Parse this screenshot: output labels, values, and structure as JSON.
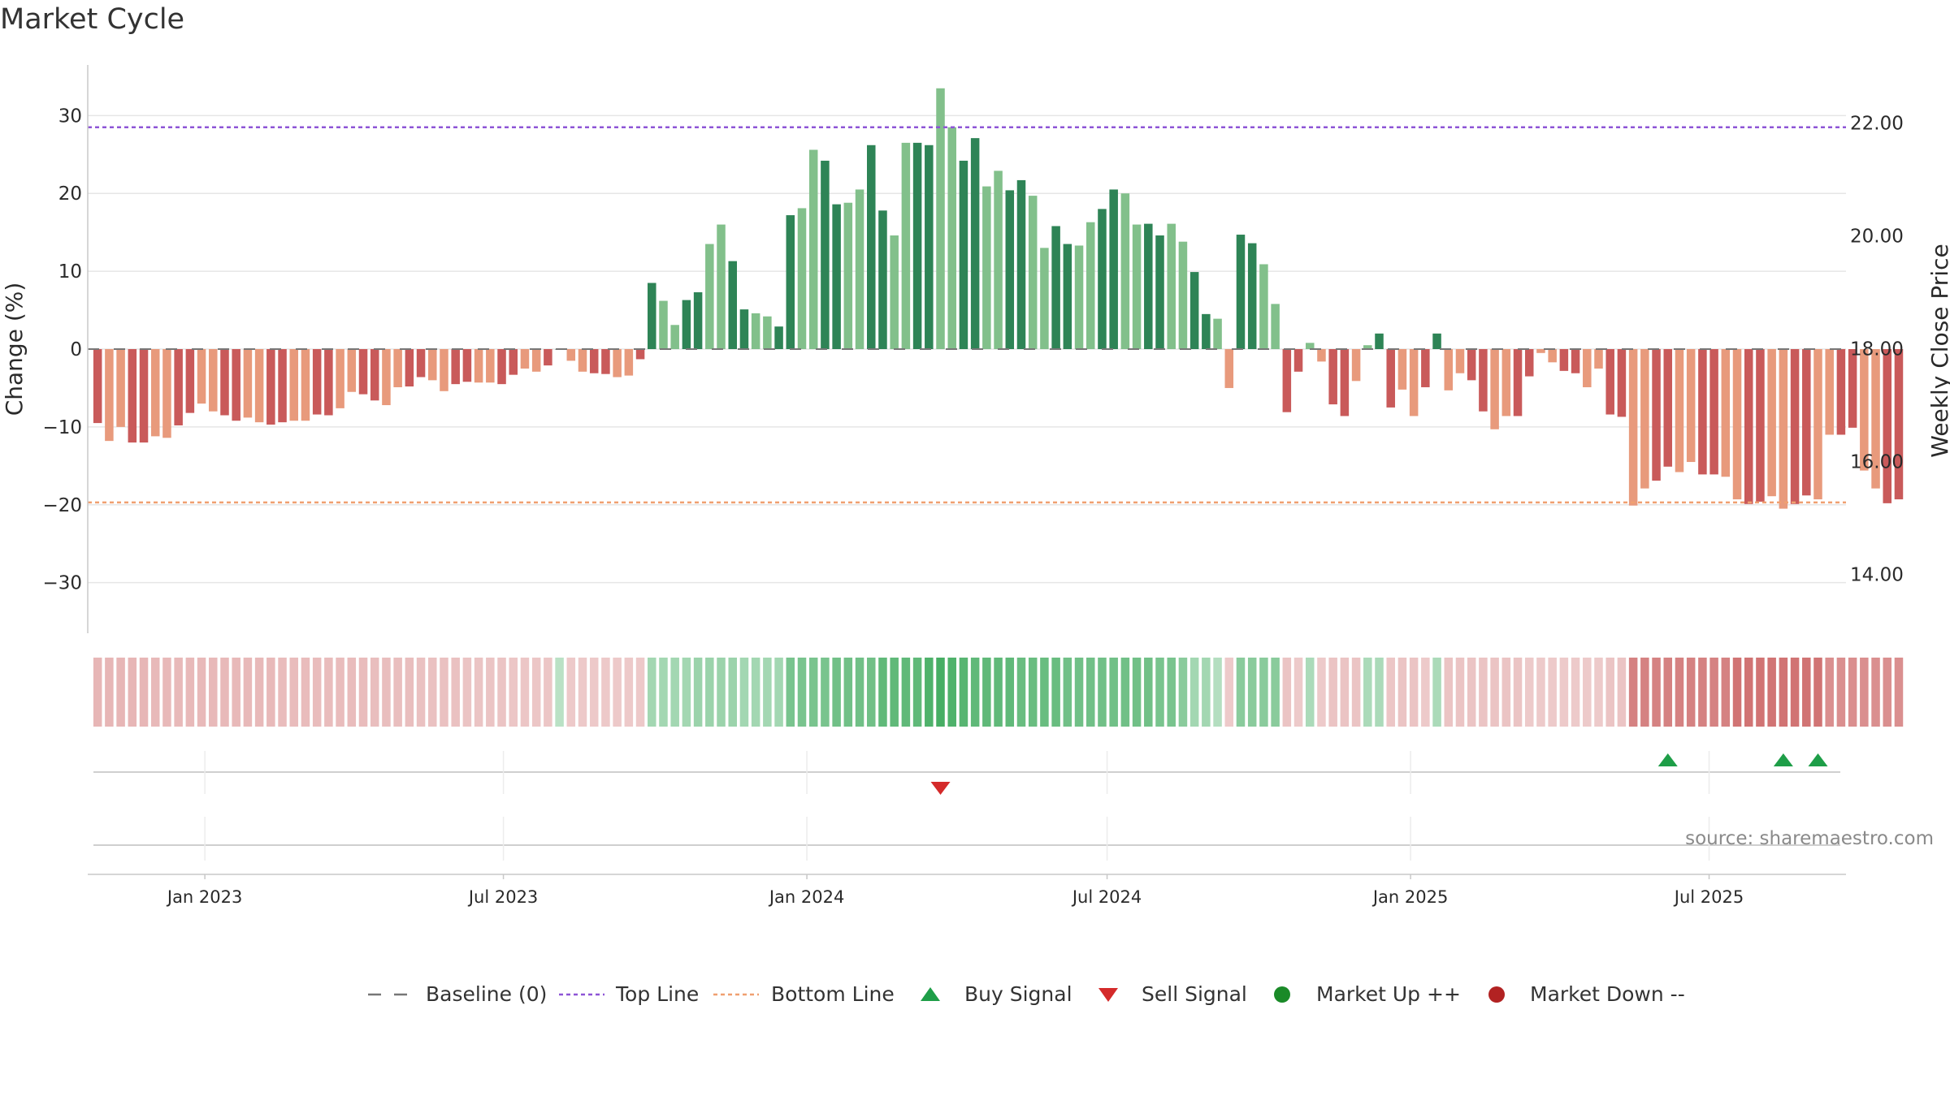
{
  "title": "Market Cycle",
  "source": "source: sharemaestro.com",
  "colors": {
    "up_strong": "#2e8456",
    "up_light": "#82c08b",
    "down_strong": "#c95a5a",
    "down_light": "#e89a7c",
    "top_line": "#8e55d6",
    "bottom_line": "#f0a070",
    "buy": "#1e9e48",
    "sell": "#d42a2a",
    "market_up": "#1a8a28",
    "market_down": "#b22222"
  },
  "chart_data": {
    "type": "bar",
    "y_left": {
      "label": "Change (%)",
      "ticks": [
        30,
        20,
        10,
        0,
        -10,
        -20,
        -30
      ],
      "tick_labels": [
        "30",
        "20",
        "10",
        "0",
        "−10",
        "−20",
        "−30"
      ],
      "range": [
        -36.5,
        36.5
      ]
    },
    "y_right": {
      "label": "Weekly Close Price",
      "ticks": [
        22.0,
        20.0,
        18.0,
        16.0,
        14.0
      ],
      "tick_labels": [
        "22.00",
        "20.00",
        "18.00",
        "16.00",
        "14.00"
      ],
      "range": [
        12.96,
        23.03
      ]
    },
    "x_axis": {
      "ticks": [
        "2023-01-01",
        "2023-07-01",
        "2024-01-01",
        "2024-07-01",
        "2025-01-01",
        "2025-07-01"
      ],
      "tick_labels": [
        "Jan 2023",
        "Jul 2023",
        "Jan 2024",
        "Jul 2024",
        "Jan 2025",
        "Jul 2025"
      ],
      "range": [
        "2022-10-22",
        "2025-09-22"
      ]
    },
    "top_line": 28.5,
    "bottom_line": -19.7,
    "baseline": 0,
    "first_week": "2022-10-28",
    "values": [
      -9.5,
      -11.8,
      -10,
      -12,
      -12,
      -11.2,
      -11.4,
      -9.8,
      -8.2,
      -7,
      -8,
      -8.5,
      -9.2,
      -8.8,
      -9.4,
      -9.7,
      -9.4,
      -9.2,
      -9.2,
      -8.4,
      -8.5,
      -7.6,
      -5.5,
      -5.8,
      -6.6,
      -7.2,
      -4.9,
      -4.8,
      -3.6,
      -4,
      -5.4,
      -4.5,
      -4.2,
      -4.3,
      -4.3,
      -4.5,
      -3.3,
      -2.5,
      -2.9,
      -2.1,
      0,
      -1.5,
      -2.9,
      -3.1,
      -3.2,
      -3.6,
      -3.4,
      -1.3,
      8.5,
      6.2,
      3.1,
      6.3,
      7.3,
      13.5,
      16,
      11.3,
      5.1,
      4.6,
      4.2,
      2.9,
      17.2,
      18.1,
      25.6,
      24.2,
      18.6,
      18.8,
      20.5,
      26.2,
      17.8,
      14.6,
      26.5,
      26.5,
      26.2,
      33.5,
      28.5,
      24.2,
      27.1,
      20.9,
      22.9,
      20.4,
      21.7,
      19.7,
      13,
      15.8,
      13.5,
      13.3,
      16.3,
      18,
      20.5,
      20,
      16,
      16.1,
      14.6,
      16.1,
      13.8,
      9.9,
      4.5,
      3.9,
      -5,
      14.7,
      13.6,
      10.9,
      5.8,
      -8.1,
      -2.9,
      0.8,
      -1.6,
      -7.1,
      -8.6,
      -4.1,
      0.5,
      2,
      -7.5,
      -5.2,
      -8.6,
      -4.9,
      2,
      -5.3,
      -3.1,
      -4,
      -8,
      -10.3,
      -8.6,
      -8.6,
      -3.5,
      -0.5,
      -1.7,
      -2.8,
      -3.1,
      -4.9,
      -2.5,
      -8.4,
      -8.7,
      -20.1,
      -17.9,
      -16.9,
      -15.1,
      -15.8,
      -14.5,
      -16.1,
      -16.1,
      -16.4,
      -19.3,
      -19.9,
      -19.6,
      -18.9,
      -20.5,
      -19.9,
      -18.8,
      -19.3,
      -11,
      -11,
      -10.1,
      -15.6,
      -17.9,
      -19.8,
      -19.3
    ],
    "strength": [
      0.3,
      0.3,
      0.3,
      0.3,
      0.3,
      0.28,
      0.28,
      0.28,
      0.28,
      0.28,
      0.28,
      0.28,
      0.28,
      0.28,
      0.28,
      0.28,
      0.26,
      0.26,
      0.26,
      0.26,
      0.26,
      0.26,
      0.26,
      0.26,
      0.24,
      0.24,
      0.24,
      0.24,
      0.22,
      0.22,
      0.22,
      0.22,
      0.2,
      0.2,
      0.2,
      0.2,
      0.18,
      0.18,
      0.18,
      0.18,
      0.16,
      0.16,
      0.16,
      0.16,
      0.16,
      0.16,
      0.16,
      0.16,
      0.3,
      0.3,
      0.3,
      0.3,
      0.35,
      0.35,
      0.35,
      0.35,
      0.3,
      0.3,
      0.3,
      0.3,
      0.55,
      0.55,
      0.55,
      0.55,
      0.6,
      0.6,
      0.6,
      0.6,
      0.7,
      0.7,
      0.7,
      0.7,
      0.8,
      0.85,
      0.8,
      0.75,
      0.7,
      0.7,
      0.7,
      0.7,
      0.65,
      0.65,
      0.65,
      0.65,
      0.6,
      0.6,
      0.6,
      0.6,
      0.6,
      0.6,
      0.6,
      0.6,
      0.55,
      0.55,
      0.45,
      0.3,
      0.3,
      0.2,
      0.15,
      0.45,
      0.45,
      0.45,
      0.45,
      0.2,
      0.15,
      0.25,
      0.15,
      0.2,
      0.2,
      0.2,
      0.25,
      0.25,
      0.18,
      0.2,
      0.2,
      0.15,
      0.25,
      0.2,
      0.2,
      0.2,
      0.2,
      0.2,
      0.2,
      0.2,
      0.15,
      0.15,
      0.15,
      0.15,
      0.15,
      0.15,
      0.15,
      0.2,
      0.2,
      0.7,
      0.7,
      0.7,
      0.7,
      0.7,
      0.7,
      0.7,
      0.7,
      0.7,
      0.8,
      0.8,
      0.8,
      0.8,
      0.8,
      0.8,
      0.8,
      0.8,
      0.6,
      0.6,
      0.6,
      0.6,
      0.6,
      0.6,
      0.6
    ],
    "buy_signal_weeks": [
      136,
      146,
      149
    ],
    "sell_signal_weeks": [
      73
    ],
    "market_up_weeks": [],
    "market_down_weeks": []
  },
  "legend": [
    {
      "label": "Baseline (0)",
      "symbol": "dash",
      "color": "#777777"
    },
    {
      "label": "Top Line",
      "symbol": "dot-line",
      "color": "#8e55d6"
    },
    {
      "label": "Bottom Line",
      "symbol": "dot-line",
      "color": "#f0a070"
    },
    {
      "label": "Buy Signal",
      "symbol": "triangle-up",
      "color": "#1e9e48"
    },
    {
      "label": "Sell Signal",
      "symbol": "triangle-down",
      "color": "#d42a2a"
    },
    {
      "label": "Market Up ++",
      "symbol": "circle",
      "color": "#1a8a28"
    },
    {
      "label": "Market Down --",
      "symbol": "circle",
      "color": "#b22222"
    }
  ]
}
